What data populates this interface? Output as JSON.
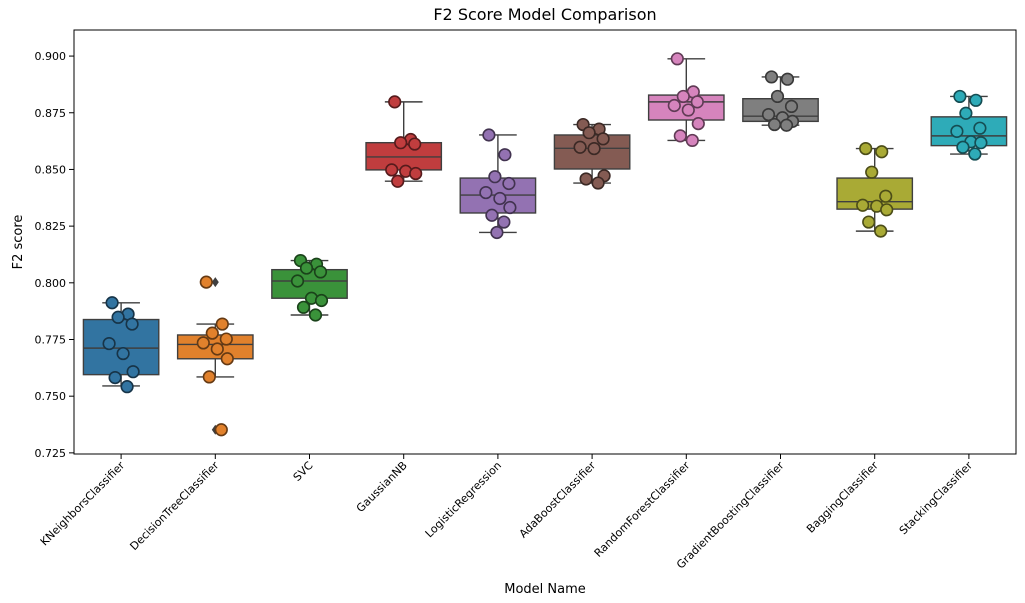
{
  "chart_data": {
    "type": "box",
    "title": "F2 Score Model Comparison",
    "xlabel": "Model Name",
    "ylabel": "F2 score",
    "ylim": [
      0.7245,
      0.9115
    ],
    "yticks": [
      0.725,
      0.75,
      0.775,
      0.8,
      0.825,
      0.85,
      0.875,
      0.9
    ],
    "ytick_labels": [
      "0.725",
      "0.750",
      "0.775",
      "0.800",
      "0.825",
      "0.850",
      "0.875",
      "0.900"
    ],
    "grid": false,
    "legend": "none",
    "categories": [
      "KNeighborsClassifier",
      "DecisionTreeClassifier",
      "SVC",
      "GaussianNB",
      "LogisticRegression",
      "AdaBoostClassifier",
      "RandomForestClassifier",
      "GradientBoostingClassifier",
      "BaggingClassifier",
      "StackingClassifier"
    ],
    "colors": [
      "#3274a1",
      "#e1812c",
      "#3a923a",
      "#c03d3e",
      "#9372b2",
      "#845b53",
      "#d684bd",
      "#7f7f7f",
      "#a9aa35",
      "#2eabb8"
    ],
    "box_stats": [
      {
        "whisker_low": 0.7545,
        "q1": 0.7595,
        "median": 0.7712,
        "q3": 0.7838,
        "whisker_high": 0.7912,
        "outliers": []
      },
      {
        "whisker_low": 0.7585,
        "q1": 0.7665,
        "median": 0.7728,
        "q3": 0.777,
        "whisker_high": 0.7818,
        "outliers": [
          0.8003,
          0.7352
        ]
      },
      {
        "whisker_low": 0.7858,
        "q1": 0.7932,
        "median": 0.8008,
        "q3": 0.8058,
        "whisker_high": 0.8098,
        "outliers": []
      },
      {
        "whisker_low": 0.8448,
        "q1": 0.8498,
        "median": 0.8555,
        "q3": 0.8618,
        "whisker_high": 0.8798,
        "outliers": []
      },
      {
        "whisker_low": 0.8222,
        "q1": 0.8308,
        "median": 0.8387,
        "q3": 0.8462,
        "whisker_high": 0.8652,
        "outliers": []
      },
      {
        "whisker_low": 0.844,
        "q1": 0.8502,
        "median": 0.8593,
        "q3": 0.8652,
        "whisker_high": 0.8698,
        "outliers": []
      },
      {
        "whisker_low": 0.8628,
        "q1": 0.8718,
        "median": 0.8798,
        "q3": 0.8828,
        "whisker_high": 0.8988,
        "outliers": []
      },
      {
        "whisker_low": 0.8695,
        "q1": 0.8712,
        "median": 0.8735,
        "q3": 0.8812,
        "whisker_high": 0.8908,
        "outliers": []
      },
      {
        "whisker_low": 0.8228,
        "q1": 0.8325,
        "median": 0.8358,
        "q3": 0.8462,
        "whisker_high": 0.8592,
        "outliers": []
      },
      {
        "whisker_low": 0.8568,
        "q1": 0.8605,
        "median": 0.8648,
        "q3": 0.8732,
        "whisker_high": 0.8822,
        "outliers": []
      }
    ],
    "points": [
      [
        0.7912,
        0.7862,
        0.7848,
        0.7818,
        0.7732,
        0.7688,
        0.7608,
        0.7582,
        0.7542
      ],
      [
        0.8003,
        0.7818,
        0.7778,
        0.7752,
        0.7735,
        0.7708,
        0.7665,
        0.7585,
        0.7352
      ],
      [
        0.8098,
        0.8082,
        0.8065,
        0.8048,
        0.8008,
        0.7932,
        0.7922,
        0.7892,
        0.7858
      ],
      [
        0.8798,
        0.8632,
        0.8618,
        0.8612,
        0.8498,
        0.8492,
        0.8482,
        0.8448
      ],
      [
        0.8652,
        0.8565,
        0.8468,
        0.8438,
        0.8398,
        0.8372,
        0.8332,
        0.8298,
        0.8268,
        0.8222
      ],
      [
        0.8698,
        0.8678,
        0.8662,
        0.8635,
        0.8598,
        0.8592,
        0.8472,
        0.8458,
        0.844
      ],
      [
        0.8988,
        0.8842,
        0.8822,
        0.8798,
        0.8782,
        0.8762,
        0.8702,
        0.8648,
        0.8628
      ],
      [
        0.8908,
        0.8898,
        0.8822,
        0.8778,
        0.8742,
        0.8728,
        0.8712,
        0.8698,
        0.8695
      ],
      [
        0.8592,
        0.8578,
        0.8488,
        0.8382,
        0.8342,
        0.8338,
        0.8322,
        0.8268,
        0.8228
      ],
      [
        0.8822,
        0.8805,
        0.8748,
        0.8682,
        0.8668,
        0.8622,
        0.8618,
        0.8598,
        0.8568
      ]
    ]
  }
}
